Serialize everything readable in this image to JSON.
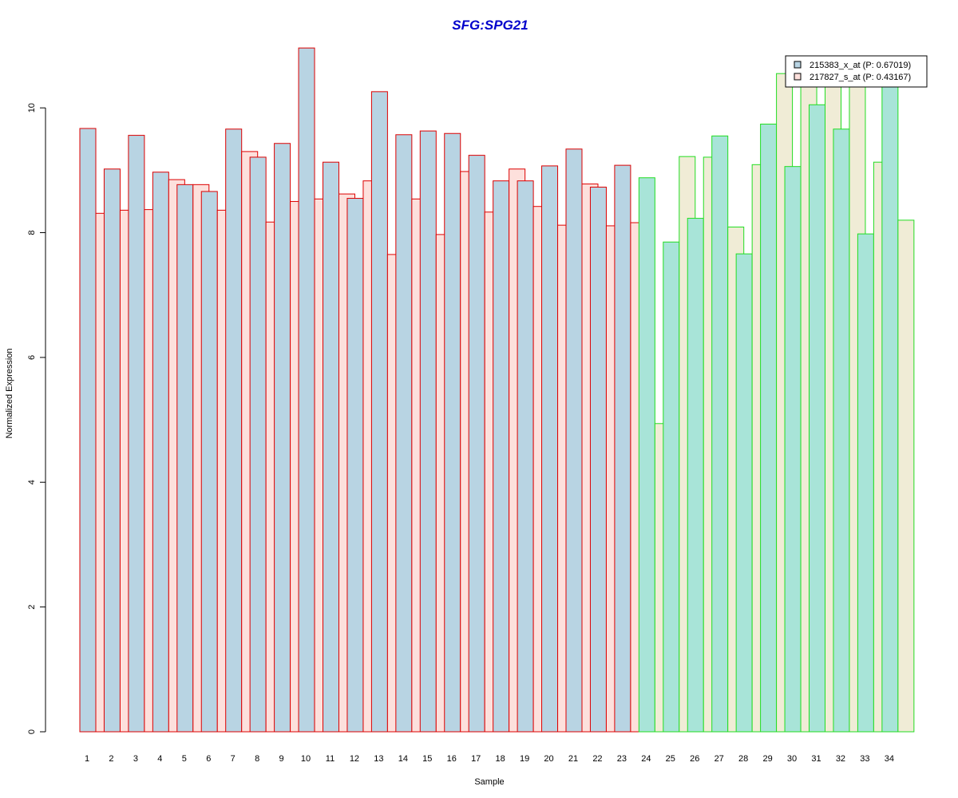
{
  "chart_data": {
    "type": "bar",
    "title": "SFG:SPG21",
    "xlabel": "Sample",
    "ylabel": "Normalized Expression",
    "ylim": [
      0,
      11
    ],
    "yticks": [
      0,
      2,
      4,
      6,
      8,
      10
    ],
    "grid": false,
    "legend_position": "top-right",
    "categories": [
      "1",
      "2",
      "3",
      "4",
      "5",
      "6",
      "7",
      "8",
      "9",
      "10",
      "11",
      "12",
      "13",
      "14",
      "15",
      "16",
      "17",
      "18",
      "19",
      "20",
      "21",
      "22",
      "23",
      "24",
      "25",
      "26",
      "27",
      "28",
      "29",
      "30",
      "31",
      "32",
      "33",
      "34"
    ],
    "group_a_count": 23,
    "series": [
      {
        "name": "215383_x_at (P: 0.67019)",
        "values": [
          9.67,
          9.02,
          9.56,
          8.97,
          8.77,
          8.66,
          9.66,
          9.21,
          9.43,
          10.96,
          9.13,
          8.55,
          10.26,
          9.57,
          9.63,
          9.59,
          9.24,
          8.83,
          8.83,
          9.07,
          9.34,
          8.73,
          9.08,
          8.88,
          7.85,
          8.23,
          9.55,
          7.66,
          9.74,
          9.06,
          10.05,
          9.66,
          7.98,
          10.35
        ]
      },
      {
        "name": "217827_s_at (P: 0.43167)",
        "values": [
          8.31,
          8.36,
          8.37,
          8.85,
          8.77,
          8.36,
          9.3,
          8.17,
          8.5,
          8.54,
          8.62,
          8.83,
          7.65,
          8.54,
          7.97,
          8.98,
          8.33,
          9.02,
          8.42,
          8.12,
          8.78,
          8.11,
          8.16,
          4.94,
          9.22,
          9.21,
          8.09,
          9.09,
          10.55,
          10.35,
          10.35,
          10.35,
          9.13,
          8.2
        ]
      }
    ],
    "colors": {
      "title": "#0000cc",
      "group_a_border": "#dd0000",
      "group_b_border": "#22dd22",
      "group_a_series1_fill": "#b8d4e3",
      "group_a_series2_fill": "#fde0dc",
      "group_b_series1_fill": "#a8e4d8",
      "group_b_series2_fill": "#f0ecd6",
      "legend_series1_fill": "#b8d4e3",
      "legend_series2_fill": "#fde0dc",
      "axis": "#000000"
    }
  }
}
